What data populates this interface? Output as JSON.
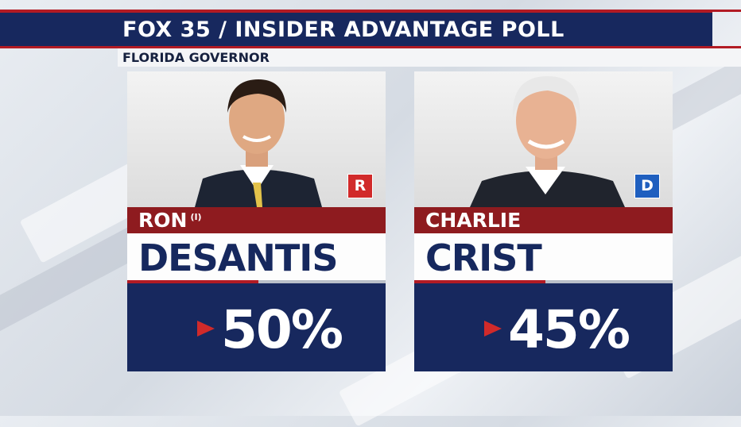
{
  "header": {
    "title": "FOX 35 / INSIDER ADVANTAGE POLL",
    "subtitle": "FLORIDA GOVERNOR"
  },
  "colors": {
    "navy": "#17285e",
    "red": "#b21b24",
    "dark_red": "#8e1b1f",
    "republican": "#d12a2a",
    "democrat": "#1f5fbf"
  },
  "candidates": [
    {
      "first_name": "RON",
      "incumbent_marker": "(I)",
      "last_name": "DESANTIS",
      "party": "R",
      "percent": "50%",
      "photo_icon": "candidate-portrait"
    },
    {
      "first_name": "CHARLIE",
      "incumbent_marker": "",
      "last_name": "CRIST",
      "party": "D",
      "percent": "45%",
      "photo_icon": "candidate-portrait"
    }
  ]
}
